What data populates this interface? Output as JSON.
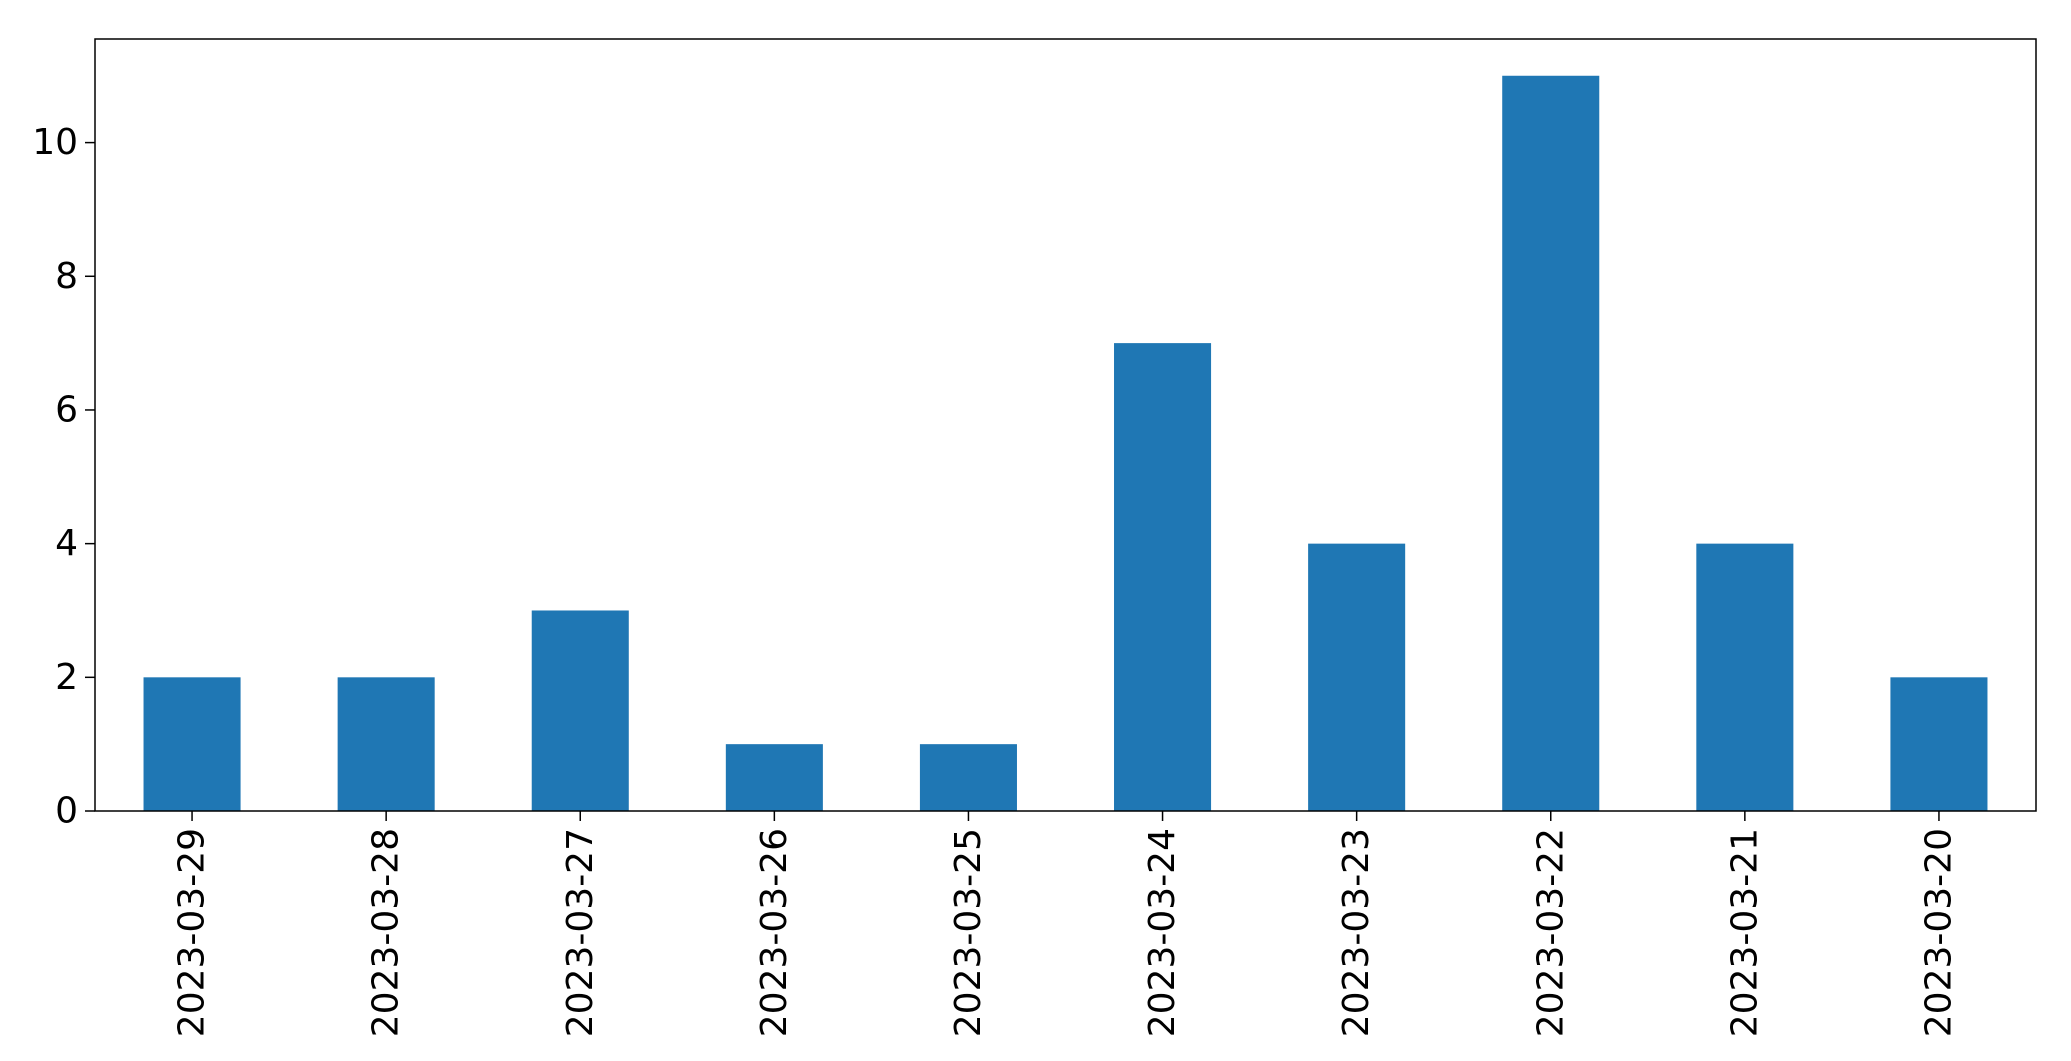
{
  "chart_data": {
    "type": "bar",
    "title": "",
    "xlabel": "",
    "ylabel": "",
    "categories": [
      "2023-03-29",
      "2023-03-28",
      "2023-03-27",
      "2023-03-26",
      "2023-03-25",
      "2023-03-24",
      "2023-03-23",
      "2023-03-22",
      "2023-03-21",
      "2023-03-20"
    ],
    "values": [
      2,
      2,
      3,
      1,
      1,
      7,
      4,
      11,
      4,
      2
    ],
    "ylim": [
      0,
      11.55
    ],
    "yticks": [
      0,
      2,
      4,
      6,
      8,
      10
    ],
    "grid": false,
    "legend": "none",
    "bar_color": "#1f77b4"
  }
}
